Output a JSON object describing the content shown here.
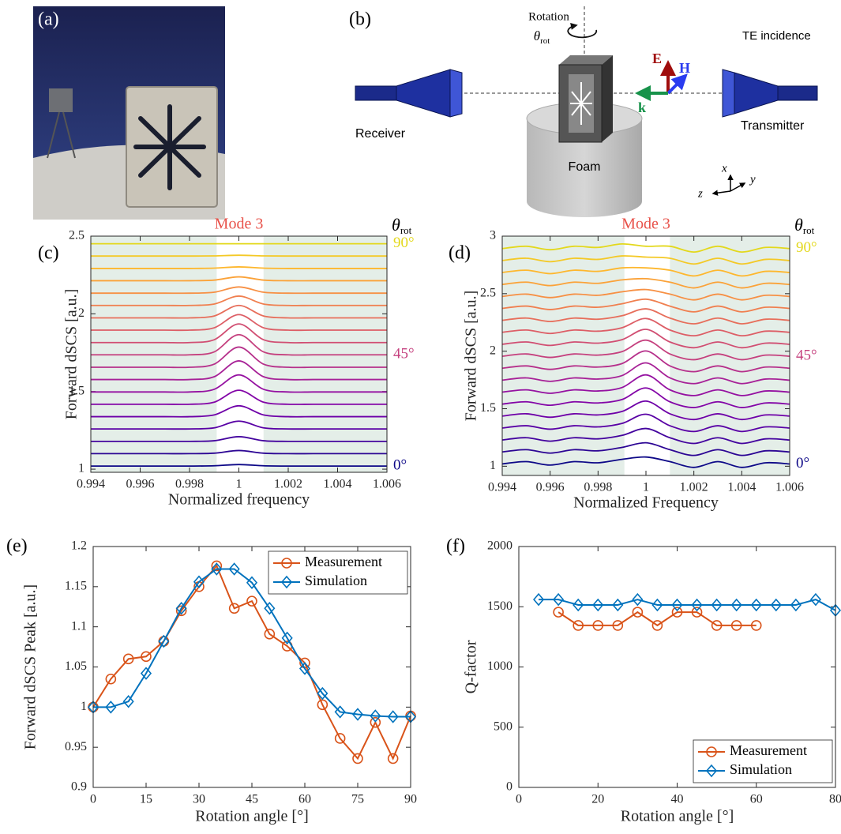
{
  "photo": {
    "label": "(a)"
  },
  "diagram": {
    "label": "(b)",
    "rotation": "Rotation",
    "theta": "θ",
    "theta_sub": "rot",
    "incidence": "TE incidence",
    "E": "E",
    "H": "H",
    "k": "k",
    "receiver": "Receiver",
    "transmitter": "Transmitter",
    "foam": "Foam",
    "axis_x": "x",
    "axis_y": "y",
    "axis_z": "z"
  },
  "chart_data": [
    {
      "type": "line",
      "label": "(c)",
      "annotation": "Mode 3",
      "angle_symbol": "θ",
      "angle_sub": "rot",
      "smooth": true,
      "xlabel": "Normalized frequency",
      "ylabel": "Forward dSCS [a.u.]",
      "xlim": [
        0.994,
        1.006
      ],
      "ylim": [
        0.98,
        2.5
      ],
      "xticks": [
        0.994,
        0.996,
        0.998,
        1,
        1.002,
        1.004,
        1.006
      ],
      "yticks": [
        1,
        1.5,
        2,
        2.5
      ],
      "shaded_regions": [
        [
          0.994,
          0.9991
        ],
        [
          1.001,
          1.006
        ]
      ],
      "shade_color": "#e4eee8",
      "x": [
        0.994,
        0.995,
        0.996,
        0.997,
        0.998,
        0.999,
        1,
        1.001,
        1.002,
        1.003,
        1.004,
        1.005,
        1.006
      ],
      "series": [
        {
          "name": "0°",
          "color": "#0d0887",
          "values": [
            1.02,
            1.02,
            1.02,
            1.02,
            1.02,
            1.022,
            1.03,
            1.022,
            1.02,
            1.02,
            1.02,
            1.02,
            1.02
          ]
        },
        {
          "color": "#2c0594",
          "values": [
            1.1,
            1.1,
            1.1,
            1.1,
            1.1,
            1.103,
            1.12,
            1.103,
            1.1,
            1.1,
            1.1,
            1.1,
            1.1
          ]
        },
        {
          "color": "#43039e",
          "values": [
            1.179,
            1.179,
            1.179,
            1.179,
            1.179,
            1.183,
            1.209,
            1.183,
            1.179,
            1.179,
            1.179,
            1.179,
            1.179
          ]
        },
        {
          "color": "#5901a5",
          "values": [
            1.259,
            1.259,
            1.259,
            1.259,
            1.259,
            1.266,
            1.309,
            1.266,
            1.259,
            1.259,
            1.259,
            1.259,
            1.259
          ]
        },
        {
          "color": "#6e00a8",
          "values": [
            1.338,
            1.338,
            1.338,
            1.338,
            1.338,
            1.349,
            1.408,
            1.349,
            1.338,
            1.338,
            1.338,
            1.338,
            1.338
          ]
        },
        {
          "color": "#8305a7",
          "values": [
            1.418,
            1.418,
            1.418,
            1.418,
            1.418,
            1.431,
            1.508,
            1.431,
            1.418,
            1.418,
            1.418,
            1.418,
            1.418
          ]
        },
        {
          "color": "#9511a1",
          "values": [
            1.497,
            1.497,
            1.497,
            1.497,
            1.497,
            1.514,
            1.607,
            1.514,
            1.497,
            1.497,
            1.497,
            1.497,
            1.497
          ]
        },
        {
          "color": "#a72197",
          "values": [
            1.577,
            1.577,
            1.577,
            1.577,
            1.577,
            1.595,
            1.697,
            1.595,
            1.577,
            1.577,
            1.577,
            1.577,
            1.577
          ]
        },
        {
          "color": "#b6308b",
          "values": [
            1.656,
            1.656,
            1.656,
            1.656,
            1.656,
            1.676,
            1.786,
            1.676,
            1.656,
            1.656,
            1.656,
            1.656,
            1.656
          ]
        },
        {
          "name": "45°",
          "color": "#c5407e",
          "values": [
            1.736,
            1.736,
            1.736,
            1.736,
            1.736,
            1.755,
            1.866,
            1.755,
            1.736,
            1.736,
            1.736,
            1.736,
            1.736
          ]
        },
        {
          "color": "#d14e72",
          "values": [
            1.815,
            1.815,
            1.815,
            1.815,
            1.815,
            1.833,
            1.935,
            1.833,
            1.815,
            1.815,
            1.815,
            1.815,
            1.815
          ]
        },
        {
          "color": "#dd5e66",
          "values": [
            1.895,
            1.895,
            1.895,
            1.895,
            1.895,
            1.91,
            1.995,
            1.91,
            1.895,
            1.895,
            1.895,
            1.895,
            1.895
          ]
        },
        {
          "color": "#e76e5b",
          "values": [
            1.974,
            1.974,
            1.974,
            1.974,
            1.974,
            1.986,
            2.054,
            1.986,
            1.974,
            1.974,
            1.974,
            1.974,
            1.974
          ]
        },
        {
          "color": "#f07f4f",
          "values": [
            2.054,
            2.054,
            2.054,
            2.054,
            2.054,
            2.063,
            2.114,
            2.063,
            2.054,
            2.054,
            2.054,
            2.054,
            2.054
          ]
        },
        {
          "color": "#f79044",
          "values": [
            2.133,
            2.133,
            2.133,
            2.133,
            2.133,
            2.139,
            2.173,
            2.139,
            2.133,
            2.133,
            2.133,
            2.133,
            2.133
          ]
        },
        {
          "color": "#fba238",
          "values": [
            2.213,
            2.213,
            2.213,
            2.213,
            2.213,
            2.217,
            2.238,
            2.217,
            2.213,
            2.213,
            2.213,
            2.213,
            2.213
          ]
        },
        {
          "color": "#feb72d",
          "values": [
            2.292,
            2.292,
            2.292,
            2.292,
            2.292,
            2.294,
            2.302,
            2.294,
            2.292,
            2.292,
            2.292,
            2.292,
            2.292
          ]
        },
        {
          "color": "#f4c926",
          "values": [
            2.372,
            2.372,
            2.372,
            2.372,
            2.372,
            2.373,
            2.377,
            2.373,
            2.372,
            2.372,
            2.372,
            2.372,
            2.372
          ]
        },
        {
          "name": "90°",
          "color": "#e3d81c",
          "values": [
            2.451,
            2.451,
            2.451,
            2.451,
            2.451,
            2.451,
            2.451,
            2.451,
            2.451,
            2.451,
            2.451,
            2.451,
            2.451
          ]
        }
      ]
    },
    {
      "type": "line",
      "label": "(d)",
      "annotation": "Mode 3",
      "angle_symbol": "θ",
      "angle_sub": "rot",
      "smooth": true,
      "xlabel": "Normalized Frequency",
      "ylabel": "Forward dSCS [a.u.]",
      "xlim": [
        0.994,
        1.006
      ],
      "ylim": [
        0.92,
        3
      ],
      "xticks": [
        0.994,
        0.996,
        0.998,
        1,
        1.002,
        1.004,
        1.006
      ],
      "yticks": [
        1,
        1.5,
        2,
        2.5,
        3
      ],
      "shaded_regions": [
        [
          0.994,
          0.9991
        ],
        [
          1.001,
          1.006
        ]
      ],
      "shade_color": "#e4eee8",
      "x": [
        0.994,
        0.995,
        0.996,
        0.997,
        0.998,
        0.999,
        1,
        1.001,
        1.002,
        1.003,
        1.004,
        1.005,
        1.006
      ],
      "series": [
        {
          "name": "0°",
          "color": "#0d0887",
          "values": [
            1.02,
            1.04,
            1.01,
            1.04,
            1.03,
            1.06,
            1.08,
            1.04,
            0.99,
            1.04,
            0.99,
            1.03,
            1.02
          ]
        },
        {
          "color": "#2c0594",
          "values": [
            1.124,
            1.144,
            1.114,
            1.144,
            1.134,
            1.164,
            1.204,
            1.144,
            1.094,
            1.144,
            1.094,
            1.134,
            1.124
          ]
        },
        {
          "color": "#43039e",
          "values": [
            1.228,
            1.248,
            1.218,
            1.248,
            1.238,
            1.268,
            1.328,
            1.248,
            1.198,
            1.248,
            1.198,
            1.238,
            1.228
          ]
        },
        {
          "color": "#5901a5",
          "values": [
            1.332,
            1.352,
            1.322,
            1.352,
            1.342,
            1.372,
            1.452,
            1.352,
            1.302,
            1.352,
            1.302,
            1.342,
            1.332
          ]
        },
        {
          "color": "#6e00a8",
          "values": [
            1.436,
            1.456,
            1.426,
            1.456,
            1.446,
            1.476,
            1.566,
            1.456,
            1.406,
            1.456,
            1.406,
            1.446,
            1.436
          ]
        },
        {
          "color": "#8305a7",
          "values": [
            1.54,
            1.56,
            1.53,
            1.56,
            1.55,
            1.58,
            1.68,
            1.56,
            1.51,
            1.56,
            1.51,
            1.55,
            1.54
          ]
        },
        {
          "color": "#9511a1",
          "values": [
            1.644,
            1.664,
            1.634,
            1.664,
            1.654,
            1.684,
            1.794,
            1.664,
            1.614,
            1.664,
            1.614,
            1.654,
            1.644
          ]
        },
        {
          "color": "#a72197",
          "values": [
            1.748,
            1.768,
            1.738,
            1.768,
            1.758,
            1.788,
            1.898,
            1.768,
            1.718,
            1.768,
            1.718,
            1.758,
            1.748
          ]
        },
        {
          "color": "#b6308b",
          "values": [
            1.852,
            1.872,
            1.842,
            1.872,
            1.862,
            1.892,
            2.002,
            1.872,
            1.822,
            1.872,
            1.822,
            1.862,
            1.852
          ]
        },
        {
          "name": "45°",
          "color": "#c5407e",
          "values": [
            1.956,
            1.976,
            1.946,
            1.976,
            1.966,
            1.996,
            2.096,
            1.976,
            1.926,
            1.976,
            1.926,
            1.966,
            1.956
          ]
        },
        {
          "color": "#d14e72",
          "values": [
            2.06,
            2.08,
            2.05,
            2.08,
            2.07,
            2.1,
            2.19,
            2.08,
            2.03,
            2.08,
            2.03,
            2.07,
            2.06
          ]
        },
        {
          "color": "#dd5e66",
          "values": [
            2.164,
            2.184,
            2.154,
            2.184,
            2.174,
            2.204,
            2.284,
            2.184,
            2.134,
            2.184,
            2.134,
            2.174,
            2.164
          ]
        },
        {
          "color": "#e76e5b",
          "values": [
            2.268,
            2.288,
            2.258,
            2.288,
            2.278,
            2.308,
            2.368,
            2.288,
            2.238,
            2.288,
            2.238,
            2.278,
            2.268
          ]
        },
        {
          "color": "#f07f4f",
          "values": [
            2.372,
            2.392,
            2.362,
            2.392,
            2.382,
            2.412,
            2.452,
            2.392,
            2.342,
            2.392,
            2.342,
            2.382,
            2.372
          ]
        },
        {
          "color": "#f79044",
          "values": [
            2.476,
            2.496,
            2.466,
            2.496,
            2.486,
            2.516,
            2.536,
            2.496,
            2.446,
            2.496,
            2.446,
            2.486,
            2.476
          ]
        },
        {
          "color": "#fba238",
          "values": [
            2.58,
            2.6,
            2.57,
            2.6,
            2.59,
            2.62,
            2.63,
            2.6,
            2.55,
            2.6,
            2.55,
            2.59,
            2.58
          ]
        },
        {
          "color": "#feb72d",
          "values": [
            2.684,
            2.704,
            2.674,
            2.704,
            2.694,
            2.724,
            2.724,
            2.704,
            2.654,
            2.704,
            2.654,
            2.694,
            2.684
          ]
        },
        {
          "color": "#f4c926",
          "values": [
            2.788,
            2.808,
            2.778,
            2.808,
            2.798,
            2.828,
            2.818,
            2.808,
            2.758,
            2.808,
            2.758,
            2.798,
            2.788
          ]
        },
        {
          "name": "90°",
          "color": "#e3d81c",
          "values": [
            2.892,
            2.912,
            2.882,
            2.912,
            2.902,
            2.932,
            2.912,
            2.912,
            2.862,
            2.912,
            2.862,
            2.902,
            2.892
          ]
        }
      ]
    },
    {
      "type": "line",
      "label": "(e)",
      "xlabel": "Rotation angle [°]",
      "ylabel": "Forward dSCS Peak [a.u.]",
      "xlim": [
        0,
        90
      ],
      "ylim": [
        0.9,
        1.2
      ],
      "xticks": [
        0,
        15,
        30,
        45,
        60,
        75,
        90
      ],
      "yticks": [
        0.9,
        0.95,
        1,
        1.05,
        1.1,
        1.15,
        1.2
      ],
      "legend": "upper right",
      "x": [
        0,
        5,
        10,
        15,
        20,
        25,
        30,
        35,
        40,
        45,
        50,
        55,
        60,
        65,
        70,
        75,
        80,
        85,
        90
      ],
      "series": [
        {
          "name": "Measurement",
          "color": "#d95319",
          "marker": "circle",
          "values": [
            1.0,
            1.035,
            1.06,
            1.063,
            1.082,
            1.12,
            1.15,
            1.176,
            1.123,
            1.132,
            1.091,
            1.076,
            1.055,
            1.003,
            0.961,
            0.936,
            0.981,
            0.936,
            0.989
          ]
        },
        {
          "name": "Simulation",
          "color": "#0072bd",
          "marker": "diamond",
          "values": [
            1.0,
            1.0,
            1.007,
            1.042,
            1.082,
            1.123,
            1.156,
            1.172,
            1.172,
            1.155,
            1.123,
            1.086,
            1.048,
            1.017,
            0.994,
            0.991,
            0.989,
            0.988,
            0.988
          ]
        }
      ]
    },
    {
      "type": "line",
      "label": "(f)",
      "xlabel": "Rotation angle [°]",
      "ylabel": "Q-factor",
      "xlim": [
        0,
        80
      ],
      "ylim": [
        0,
        2000
      ],
      "xticks": [
        0,
        20,
        40,
        60,
        80
      ],
      "yticks": [
        0,
        500,
        1000,
        1500,
        2000
      ],
      "legend": "lower right",
      "series": [
        {
          "name": "Measurement",
          "color": "#d95319",
          "marker": "circle",
          "x": [
            10,
            15,
            20,
            25,
            30,
            35,
            40,
            45,
            50,
            55,
            60
          ],
          "values": [
            1455,
            1345,
            1345,
            1345,
            1455,
            1345,
            1455,
            1455,
            1345,
            1345,
            1345
          ]
        },
        {
          "name": "Simulation",
          "color": "#0072bd",
          "marker": "diamond",
          "x": [
            5,
            10,
            15,
            20,
            25,
            30,
            35,
            40,
            45,
            50,
            55,
            60,
            65,
            70,
            75,
            80
          ],
          "values": [
            1560,
            1560,
            1515,
            1515,
            1515,
            1560,
            1515,
            1515,
            1515,
            1515,
            1515,
            1515,
            1515,
            1515,
            1560,
            1470
          ]
        }
      ]
    }
  ]
}
